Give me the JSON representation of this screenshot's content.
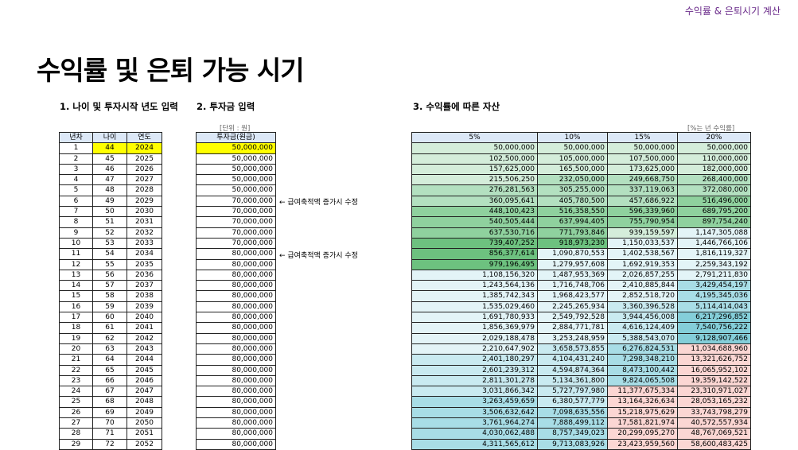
{
  "header": {
    "brand": "수익률 & 은퇴시기 계산"
  },
  "title": "수익률 및 은퇴 가능 시기",
  "sections": {
    "s1": "1. 나이 및 투자시작 년도 입력",
    "s2": "2. 투자금 입력",
    "s3": "3. 수익률에 따른 자산"
  },
  "units": {
    "won": "[단위 : 원]",
    "rate": "[%는 년 수익률]"
  },
  "tableA": {
    "headers": [
      "년차",
      "나이",
      "연도"
    ],
    "rows": [
      [
        "1",
        "44",
        "2024"
      ],
      [
        "2",
        "45",
        "2025"
      ],
      [
        "3",
        "46",
        "2026"
      ],
      [
        "4",
        "47",
        "2027"
      ],
      [
        "5",
        "48",
        "2028"
      ],
      [
        "6",
        "49",
        "2029"
      ],
      [
        "7",
        "50",
        "2030"
      ],
      [
        "8",
        "51",
        "2031"
      ],
      [
        "9",
        "52",
        "2032"
      ],
      [
        "10",
        "53",
        "2033"
      ],
      [
        "11",
        "54",
        "2034"
      ],
      [
        "12",
        "55",
        "2035"
      ],
      [
        "13",
        "56",
        "2036"
      ],
      [
        "14",
        "57",
        "2037"
      ],
      [
        "15",
        "58",
        "2038"
      ],
      [
        "16",
        "59",
        "2039"
      ],
      [
        "17",
        "60",
        "2040"
      ],
      [
        "18",
        "61",
        "2041"
      ],
      [
        "19",
        "62",
        "2042"
      ],
      [
        "20",
        "63",
        "2043"
      ],
      [
        "21",
        "64",
        "2044"
      ],
      [
        "22",
        "65",
        "2045"
      ],
      [
        "23",
        "66",
        "2046"
      ],
      [
        "24",
        "67",
        "2047"
      ],
      [
        "25",
        "68",
        "2048"
      ],
      [
        "26",
        "69",
        "2049"
      ],
      [
        "27",
        "70",
        "2050"
      ],
      [
        "28",
        "71",
        "2051"
      ],
      [
        "29",
        "72",
        "2052"
      ]
    ]
  },
  "tableB": {
    "header": "투자금(원금)",
    "values": [
      "50,000,000",
      "50,000,000",
      "50,000,000",
      "50,000,000",
      "50,000,000",
      "70,000,000",
      "70,000,000",
      "70,000,000",
      "70,000,000",
      "70,000,000",
      "80,000,000",
      "80,000,000",
      "80,000,000",
      "80,000,000",
      "80,000,000",
      "80,000,000",
      "80,000,000",
      "80,000,000",
      "80,000,000",
      "80,000,000",
      "80,000,000",
      "80,000,000",
      "80,000,000",
      "80,000,000",
      "80,000,000",
      "80,000,000",
      "80,000,000",
      "80,000,000",
      "80,000,000"
    ]
  },
  "notes": [
    {
      "text": "← 급여축적액 증가시 수정",
      "row": 6
    },
    {
      "text": "← 급여축적액 증가시 수정",
      "row": 11
    }
  ],
  "tableC": {
    "headers": [
      "5%",
      "10%",
      "15%",
      "20%"
    ],
    "rows": [
      [
        "50,000,000",
        "50,000,000",
        "50,000,000",
        "50,000,000"
      ],
      [
        "102,500,000",
        "105,000,000",
        "107,500,000",
        "110,000,000"
      ],
      [
        "157,625,000",
        "165,500,000",
        "173,625,000",
        "182,000,000"
      ],
      [
        "215,506,250",
        "232,050,000",
        "249,668,750",
        "268,400,000"
      ],
      [
        "276,281,563",
        "305,255,000",
        "337,119,063",
        "372,080,000"
      ],
      [
        "360,095,641",
        "405,780,500",
        "457,686,922",
        "516,496,000"
      ],
      [
        "448,100,423",
        "516,358,550",
        "596,339,960",
        "689,795,200"
      ],
      [
        "540,505,444",
        "637,994,405",
        "755,790,954",
        "897,754,240"
      ],
      [
        "637,530,716",
        "771,793,846",
        "939,159,597",
        "1,147,305,088"
      ],
      [
        "739,407,252",
        "918,973,230",
        "1,150,033,537",
        "1,446,766,106"
      ],
      [
        "856,377,614",
        "1,090,870,553",
        "1,402,538,567",
        "1,816,119,327"
      ],
      [
        "979,196,495",
        "1,279,957,608",
        "1,692,919,353",
        "2,259,343,192"
      ],
      [
        "1,108,156,320",
        "1,487,953,369",
        "2,026,857,255",
        "2,791,211,830"
      ],
      [
        "1,243,564,136",
        "1,716,748,706",
        "2,410,885,844",
        "3,429,454,197"
      ],
      [
        "1,385,742,343",
        "1,968,423,577",
        "2,852,518,720",
        "4,195,345,036"
      ],
      [
        "1,535,029,460",
        "2,245,265,934",
        "3,360,396,528",
        "5,114,414,043"
      ],
      [
        "1,691,780,933",
        "2,549,792,528",
        "3,944,456,008",
        "6,217,296,852"
      ],
      [
        "1,856,369,979",
        "2,884,771,781",
        "4,616,124,409",
        "7,540,756,222"
      ],
      [
        "2,029,188,478",
        "3,253,248,959",
        "5,388,543,070",
        "9,128,907,466"
      ],
      [
        "2,210,647,902",
        "3,658,573,855",
        "6,276,824,531",
        "11,034,688,960"
      ],
      [
        "2,401,180,297",
        "4,104,431,240",
        "7,298,348,210",
        "13,321,626,752"
      ],
      [
        "2,601,239,312",
        "4,594,874,364",
        "8,473,100,442",
        "16,065,952,102"
      ],
      [
        "2,811,301,278",
        "5,134,361,800",
        "9,824,065,508",
        "19,359,142,522"
      ],
      [
        "3,031,866,342",
        "5,727,797,980",
        "11,377,675,334",
        "23,310,971,027"
      ],
      [
        "3,263,459,659",
        "6,380,577,779",
        "13,164,326,634",
        "28,053,165,232"
      ],
      [
        "3,506,632,642",
        "7,098,635,556",
        "15,218,975,629",
        "33,743,798,279"
      ],
      [
        "3,761,964,274",
        "7,888,499,112",
        "17,581,821,974",
        "40,572,557,934"
      ],
      [
        "4,030,062,488",
        "8,757,349,023",
        "20,299,095,270",
        "48,767,069,521"
      ],
      [
        "4,311,565,612",
        "9,713,083,926",
        "23,423,959,560",
        "58,600,483,425"
      ]
    ],
    "shades": [
      [
        "g1",
        "g1",
        "g1",
        "g1"
      ],
      [
        "g1",
        "g1",
        "g1",
        "g1"
      ],
      [
        "g1",
        "g1",
        "g1",
        "g1"
      ],
      [
        "g1",
        "g2",
        "g2",
        "g2"
      ],
      [
        "g2",
        "g2",
        "g2",
        "g2"
      ],
      [
        "g2",
        "g2",
        "g2",
        "g3"
      ],
      [
        "g3",
        "g3",
        "g3",
        "g3"
      ],
      [
        "g3",
        "g3",
        "g3",
        "g3"
      ],
      [
        "g3",
        "g3",
        "g1",
        "b1"
      ],
      [
        "g4",
        "g4",
        "b1",
        "b1"
      ],
      [
        "g4",
        "b1",
        "b1",
        "b1"
      ],
      [
        "g4",
        "b1",
        "b1",
        "b1"
      ],
      [
        "b1",
        "b1",
        "b1",
        "b1"
      ],
      [
        "b1",
        "b1",
        "b1",
        "b3"
      ],
      [
        "b1",
        "b1",
        "b1",
        "b3"
      ],
      [
        "b1",
        "b1",
        "b2",
        "b3"
      ],
      [
        "b1",
        "b1",
        "b2",
        "b4"
      ],
      [
        "b1",
        "b1",
        "b2",
        "b4"
      ],
      [
        "b1",
        "b1",
        "b2",
        "b4"
      ],
      [
        "b1",
        "b2",
        "b3",
        "p1"
      ],
      [
        "b2",
        "b2",
        "b3",
        "p1"
      ],
      [
        "b2",
        "b2",
        "b3",
        "p1"
      ],
      [
        "b2",
        "b2",
        "b3",
        "p1"
      ],
      [
        "b2",
        "b2",
        "p1",
        "p1"
      ],
      [
        "b3",
        "b2",
        "p1",
        "p1"
      ],
      [
        "b3",
        "b3",
        "p1",
        "p1"
      ],
      [
        "b3",
        "b3",
        "p1",
        "p1"
      ],
      [
        "b3",
        "b3",
        "p1",
        "p1"
      ],
      [
        "b3",
        "b3",
        "p1",
        "p1"
      ]
    ]
  }
}
